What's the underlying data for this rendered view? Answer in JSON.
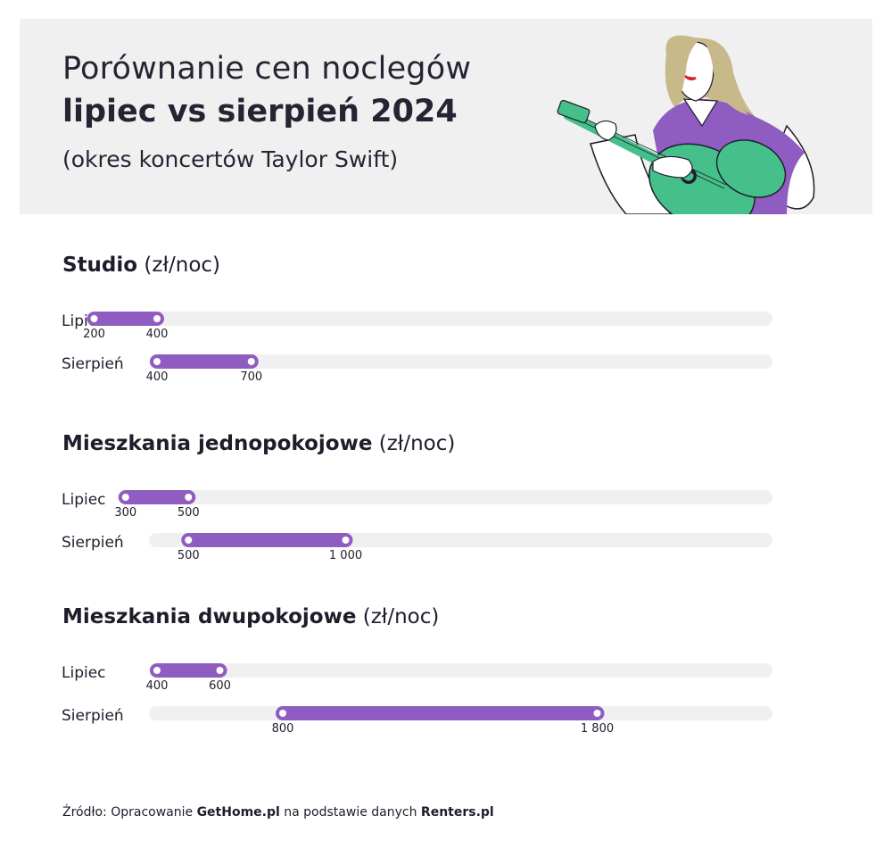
{
  "header": {
    "title_line1": "Porównanie cen noclegów",
    "title_line2": "lipiec vs sierpień 2024",
    "subtitle": "(okres koncertów Taylor Swift)"
  },
  "colors": {
    "bar": "#8f5cc2",
    "track": "#f0f0f0",
    "header_bg": "#f0f0f0",
    "guitar": "#45c08a",
    "shirt": "#8f5cc2",
    "hair": "#c7b98a"
  },
  "chart_data": [
    {
      "type": "range-bar",
      "title": "Studio",
      "unit": "(zł/noc)",
      "categories": [
        "Lipiec",
        "Sierpień"
      ],
      "ranges": [
        {
          "min": 200,
          "max": 400,
          "min_label": "200",
          "max_label": "400"
        },
        {
          "min": 400,
          "max": 700,
          "min_label": "400",
          "max_label": "700"
        }
      ]
    },
    {
      "type": "range-bar",
      "title": "Mieszkania jednopokojowe",
      "unit": "(zł/noc)",
      "categories": [
        "Lipiec",
        "Sierpień"
      ],
      "ranges": [
        {
          "min": 300,
          "max": 500,
          "min_label": "300",
          "max_label": "500"
        },
        {
          "min": 500,
          "max": 1000,
          "min_label": "500",
          "max_label": "1 000"
        }
      ]
    },
    {
      "type": "range-bar",
      "title": "Mieszkania dwupokojowe",
      "unit": "(zł/noc)",
      "categories": [
        "Lipiec",
        "Sierpień"
      ],
      "ranges": [
        {
          "min": 400,
          "max": 600,
          "min_label": "400",
          "max_label": "600"
        },
        {
          "min": 800,
          "max": 1800,
          "min_label": "800",
          "max_label": "1 800"
        }
      ]
    }
  ],
  "source": {
    "prefix": "Źródło: Opracowanie ",
    "brand1": "GetHome.pl",
    "middle": " na podstawie danych ",
    "brand2": "Renters.pl"
  }
}
